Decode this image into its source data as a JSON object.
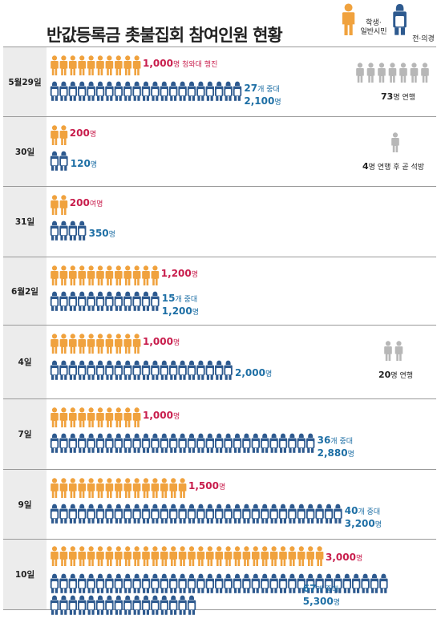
{
  "title": "반값등록금 촛불집회 참여인원 현황",
  "legend": {
    "student_label": "학생·\n일반시민",
    "doctor_label": "전·의경"
  },
  "colors": {
    "student": "#f0a23e",
    "doctor": "#2e5a8f",
    "march": "#b7b7b7",
    "student_text": "#c81d4c",
    "doctor_text": "#1e6fa5"
  },
  "icons": {
    "student": "person-icon",
    "doctor": "riot-police-icon",
    "march": "person-icon"
  },
  "chart_data": {
    "type": "pictogram",
    "title": "반값등록금 촛불집회 참여인원 현황",
    "categories": [
      "5월29일",
      "30일",
      "31일",
      "6월2일",
      "4일",
      "7일",
      "9일",
      "10일"
    ],
    "series": [
      {
        "name": "학생·일반시민",
        "values": [
          1000,
          200,
          200,
          1200,
          1000,
          1000,
          1500,
          3000
        ],
        "labels": [
          "1,000명",
          "200명",
          "200여명",
          "1,200명",
          "1,000명",
          "1,000명",
          "1,500명",
          "3,000명"
        ],
        "icon_counts": [
          10,
          2,
          2,
          12,
          10,
          10,
          15,
          30
        ]
      },
      {
        "name": "전·의경",
        "values": [
          2100,
          120,
          350,
          1200,
          2000,
          2880,
          3200,
          5300
        ],
        "labels": [
          "2,100명",
          "120명",
          "350명",
          "1,200명",
          "2,000명",
          "2,880명",
          "3,200명",
          "5,300명"
        ],
        "companies": [
          "27개 중대",
          "",
          "",
          "15개 중대",
          "",
          "36개 중대",
          "40개 중대",
          "67개 중대"
        ],
        "icon_counts": [
          21,
          2,
          4,
          12,
          20,
          29,
          32,
          53
        ]
      },
      {
        "name": "연행",
        "values": [
          73,
          4,
          null,
          null,
          20,
          null,
          null,
          null
        ],
        "labels": [
          "73명 연행",
          "4명 연행 후 곧 석방",
          "",
          "",
          "20명 연행",
          "",
          "",
          ""
        ],
        "icon_counts": [
          7,
          1,
          0,
          0,
          2,
          0,
          0,
          0
        ]
      }
    ],
    "annotations": [
      "청와대 행진"
    ]
  },
  "rows": [
    {
      "label": "5월29일",
      "student_value": "1,000",
      "student_unit": "명",
      "student_note": " 청와대 행진",
      "company_num": "27",
      "company_unit": "개 중대",
      "doctor_value": "2,100",
      "doctor_unit": "명",
      "march_value": "73",
      "march_unit": "명 연행"
    },
    {
      "label": "30일",
      "student_value": "200",
      "student_unit": "명",
      "student_note": "",
      "company_num": "",
      "company_unit": "",
      "doctor_value": "120",
      "doctor_unit": "명",
      "march_value": "4",
      "march_unit": "명 연행 후 곧 석방"
    },
    {
      "label": "31일",
      "student_value": "200",
      "student_unit": "여명",
      "student_note": "",
      "company_num": "",
      "company_unit": "",
      "doctor_value": "350",
      "doctor_unit": "명",
      "march_value": "",
      "march_unit": ""
    },
    {
      "label": "6월2일",
      "student_value": "1,200",
      "student_unit": "명",
      "student_note": "",
      "company_num": "15",
      "company_unit": "개 중대",
      "doctor_value": "1,200",
      "doctor_unit": "명",
      "march_value": "",
      "march_unit": ""
    },
    {
      "label": "4일",
      "student_value": "1,000",
      "student_unit": "명",
      "student_note": "",
      "company_num": "",
      "company_unit": "",
      "doctor_value": "2,000",
      "doctor_unit": "명",
      "march_value": "20",
      "march_unit": "명 연행"
    },
    {
      "label": "7일",
      "student_value": "1,000",
      "student_unit": "명",
      "student_note": "",
      "company_num": "36",
      "company_unit": "개 중대",
      "doctor_value": "2,880",
      "doctor_unit": "명",
      "march_value": "",
      "march_unit": ""
    },
    {
      "label": "9일",
      "student_value": "1,500",
      "student_unit": "명",
      "student_note": "",
      "company_num": "40",
      "company_unit": "개 중대",
      "doctor_value": "3,200",
      "doctor_unit": "명",
      "march_value": "",
      "march_unit": ""
    },
    {
      "label": "10일",
      "student_value": "3,000",
      "student_unit": "명",
      "student_note": "",
      "company_num": "67",
      "company_unit": "개 중대",
      "doctor_value": "5,300",
      "doctor_unit": "명",
      "march_value": "",
      "march_unit": ""
    }
  ]
}
